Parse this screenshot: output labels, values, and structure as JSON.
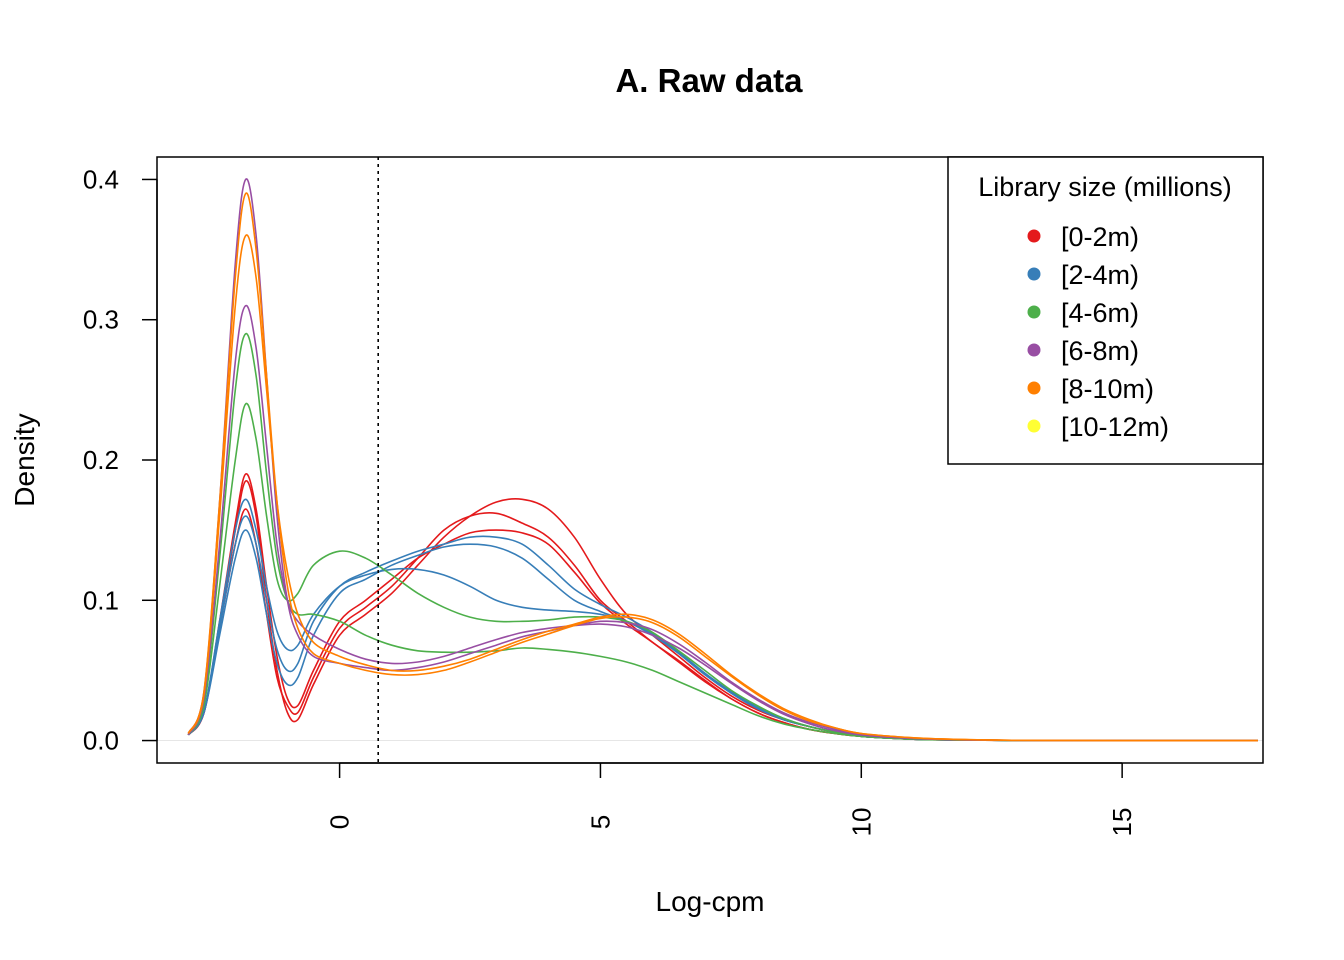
{
  "chart_data": {
    "type": "line",
    "title": "A. Raw data",
    "xlabel": "Log-cpm",
    "ylabel": "Density",
    "xlim": [
      -3.5,
      17.7
    ],
    "ylim": [
      -0.016,
      0.416
    ],
    "x_ticks": [
      0,
      5,
      10,
      15
    ],
    "x_tick_labels": [
      "0",
      "5",
      "10",
      "15"
    ],
    "y_ticks": [
      0.0,
      0.1,
      0.2,
      0.3,
      0.4
    ],
    "y_tick_labels": [
      "0.0",
      "0.1",
      "0.2",
      "0.3",
      "0.4"
    ],
    "x_tick_labels_rotated": true,
    "cutoff_line": {
      "x": 0.74,
      "style": "dotted"
    },
    "grid": false,
    "legend": {
      "title": "Library size (millions)",
      "position": "top-right",
      "entries": [
        {
          "label": "[0-2m)",
          "color": "#E41A1C"
        },
        {
          "label": "[2-4m)",
          "color": "#377EB8"
        },
        {
          "label": "[4-6m)",
          "color": "#4DAF4A"
        },
        {
          "label": "[6-8m)",
          "color": "#984EA3"
        },
        {
          "label": "[8-10m)",
          "color": "#FF7F00"
        },
        {
          "label": "[10-12m)",
          "color": "#FFFF33"
        }
      ]
    },
    "x": [
      -2.9,
      -2.6,
      -2.3,
      -2.0,
      -1.8,
      -1.6,
      -1.4,
      -1.2,
      -1.0,
      -0.8,
      -0.5,
      0.0,
      0.5,
      1.0,
      1.5,
      2.0,
      2.5,
      3.0,
      3.5,
      4.0,
      4.5,
      5.0,
      5.5,
      6.0,
      6.5,
      7.0,
      7.5,
      8.0,
      8.5,
      9.0,
      9.5,
      10.0,
      11.0,
      12.0,
      13.0,
      14.0,
      15.0,
      16.0,
      17.6
    ],
    "series": [
      {
        "group": "[0-2m)",
        "color": "#E41A1C",
        "values": [
          0.004,
          0.02,
          0.08,
          0.15,
          0.185,
          0.16,
          0.1,
          0.05,
          0.02,
          0.015,
          0.04,
          0.075,
          0.09,
          0.105,
          0.125,
          0.145,
          0.16,
          0.17,
          0.172,
          0.165,
          0.145,
          0.115,
          0.09,
          0.075,
          0.06,
          0.045,
          0.032,
          0.022,
          0.015,
          0.01,
          0.006,
          0.003,
          0.001,
          0.0004,
          0.0001,
          0.0,
          0.0,
          0.0,
          0.0
        ]
      },
      {
        "group": "[0-2m)",
        "color": "#E41A1C",
        "values": [
          0.004,
          0.02,
          0.08,
          0.14,
          0.165,
          0.14,
          0.09,
          0.045,
          0.025,
          0.02,
          0.045,
          0.08,
          0.095,
          0.11,
          0.13,
          0.15,
          0.16,
          0.162,
          0.155,
          0.145,
          0.125,
          0.1,
          0.085,
          0.07,
          0.057,
          0.043,
          0.03,
          0.02,
          0.013,
          0.008,
          0.005,
          0.003,
          0.001,
          0.0003,
          0.0001,
          0.0,
          0.0,
          0.0,
          0.0
        ]
      },
      {
        "group": "[0-2m)",
        "color": "#E41A1C",
        "values": [
          0.004,
          0.02,
          0.085,
          0.155,
          0.19,
          0.165,
          0.11,
          0.06,
          0.03,
          0.025,
          0.05,
          0.085,
          0.1,
          0.115,
          0.13,
          0.14,
          0.148,
          0.15,
          0.148,
          0.14,
          0.12,
          0.098,
          0.083,
          0.07,
          0.056,
          0.042,
          0.03,
          0.02,
          0.013,
          0.008,
          0.005,
          0.003,
          0.001,
          0.0003,
          0.0001,
          0.0,
          0.0,
          0.0,
          0.0
        ]
      },
      {
        "group": "[2-4m)",
        "color": "#377EB8",
        "values": [
          0.004,
          0.02,
          0.075,
          0.13,
          0.15,
          0.13,
          0.09,
          0.055,
          0.04,
          0.045,
          0.075,
          0.105,
          0.115,
          0.125,
          0.132,
          0.138,
          0.14,
          0.138,
          0.13,
          0.115,
          0.1,
          0.092,
          0.085,
          0.075,
          0.062,
          0.047,
          0.034,
          0.023,
          0.015,
          0.01,
          0.006,
          0.003,
          0.001,
          0.0004,
          0.0001,
          0.0,
          0.0,
          0.0,
          0.0
        ]
      },
      {
        "group": "[2-4m)",
        "color": "#377EB8",
        "values": [
          0.004,
          0.02,
          0.08,
          0.14,
          0.16,
          0.14,
          0.1,
          0.065,
          0.05,
          0.055,
          0.085,
          0.11,
          0.12,
          0.128,
          0.135,
          0.14,
          0.145,
          0.145,
          0.14,
          0.125,
          0.108,
          0.097,
          0.088,
          0.077,
          0.063,
          0.048,
          0.034,
          0.023,
          0.015,
          0.01,
          0.006,
          0.003,
          0.001,
          0.0004,
          0.0001,
          0.0,
          0.0,
          0.0,
          0.0
        ]
      },
      {
        "group": "[2-4m)",
        "color": "#377EB8",
        "values": [
          0.004,
          0.021,
          0.085,
          0.15,
          0.172,
          0.15,
          0.11,
          0.078,
          0.065,
          0.068,
          0.09,
          0.11,
          0.118,
          0.122,
          0.122,
          0.118,
          0.11,
          0.1,
          0.095,
          0.093,
          0.092,
          0.09,
          0.085,
          0.076,
          0.063,
          0.048,
          0.035,
          0.024,
          0.016,
          0.01,
          0.006,
          0.003,
          0.001,
          0.0004,
          0.0001,
          0.0,
          0.0,
          0.0,
          0.0
        ]
      },
      {
        "group": "[4-6m)",
        "color": "#4DAF4A",
        "values": [
          0.004,
          0.025,
          0.11,
          0.2,
          0.24,
          0.215,
          0.16,
          0.115,
          0.1,
          0.105,
          0.125,
          0.135,
          0.13,
          0.118,
          0.105,
          0.095,
          0.088,
          0.085,
          0.085,
          0.086,
          0.088,
          0.088,
          0.085,
          0.077,
          0.064,
          0.05,
          0.036,
          0.025,
          0.016,
          0.01,
          0.006,
          0.003,
          0.001,
          0.0004,
          0.0001,
          0.0,
          0.0,
          0.0,
          0.0
        ]
      },
      {
        "group": "[4-6m)",
        "color": "#4DAF4A",
        "values": [
          0.004,
          0.028,
          0.13,
          0.25,
          0.29,
          0.26,
          0.19,
          0.13,
          0.1,
          0.09,
          0.09,
          0.085,
          0.075,
          0.068,
          0.064,
          0.063,
          0.063,
          0.064,
          0.066,
          0.065,
          0.063,
          0.06,
          0.056,
          0.05,
          0.042,
          0.034,
          0.026,
          0.018,
          0.012,
          0.008,
          0.005,
          0.003,
          0.001,
          0.0003,
          0.0001,
          0.0,
          0.0,
          0.0,
          0.0
        ]
      },
      {
        "group": "[6-8m)",
        "color": "#984EA3",
        "values": [
          0.005,
          0.035,
          0.17,
          0.34,
          0.4,
          0.36,
          0.26,
          0.16,
          0.1,
          0.075,
          0.06,
          0.055,
          0.052,
          0.05,
          0.052,
          0.056,
          0.062,
          0.068,
          0.074,
          0.078,
          0.082,
          0.085,
          0.084,
          0.079,
          0.069,
          0.056,
          0.042,
          0.03,
          0.02,
          0.013,
          0.008,
          0.004,
          0.0015,
          0.0005,
          0.0002,
          0.0001,
          0.0,
          0.0,
          0.0
        ]
      },
      {
        "group": "[6-8m)",
        "color": "#984EA3",
        "values": [
          0.004,
          0.03,
          0.14,
          0.27,
          0.31,
          0.28,
          0.21,
          0.14,
          0.1,
          0.085,
          0.075,
          0.065,
          0.058,
          0.055,
          0.056,
          0.06,
          0.066,
          0.072,
          0.077,
          0.08,
          0.082,
          0.083,
          0.081,
          0.075,
          0.066,
          0.054,
          0.041,
          0.029,
          0.019,
          0.012,
          0.007,
          0.004,
          0.0015,
          0.0005,
          0.0002,
          0.0001,
          0.0,
          0.0,
          0.0
        ]
      },
      {
        "group": "[8-10m)",
        "color": "#FF7F00",
        "values": [
          0.005,
          0.035,
          0.17,
          0.33,
          0.39,
          0.35,
          0.26,
          0.17,
          0.11,
          0.08,
          0.062,
          0.055,
          0.05,
          0.047,
          0.047,
          0.05,
          0.056,
          0.063,
          0.07,
          0.076,
          0.082,
          0.087,
          0.088,
          0.084,
          0.074,
          0.06,
          0.046,
          0.033,
          0.022,
          0.014,
          0.009,
          0.005,
          0.002,
          0.0007,
          0.0002,
          0.0001,
          0.0,
          0.0,
          0.0
        ]
      },
      {
        "group": "[8-10m)",
        "color": "#FF7F00",
        "values": [
          0.005,
          0.033,
          0.16,
          0.31,
          0.36,
          0.33,
          0.25,
          0.17,
          0.12,
          0.09,
          0.07,
          0.06,
          0.054,
          0.05,
          0.05,
          0.053,
          0.058,
          0.065,
          0.072,
          0.078,
          0.083,
          0.088,
          0.09,
          0.086,
          0.076,
          0.062,
          0.047,
          0.034,
          0.023,
          0.015,
          0.009,
          0.005,
          0.002,
          0.0007,
          0.0002,
          0.0001,
          0.0,
          0.0,
          0.0
        ]
      }
    ]
  }
}
